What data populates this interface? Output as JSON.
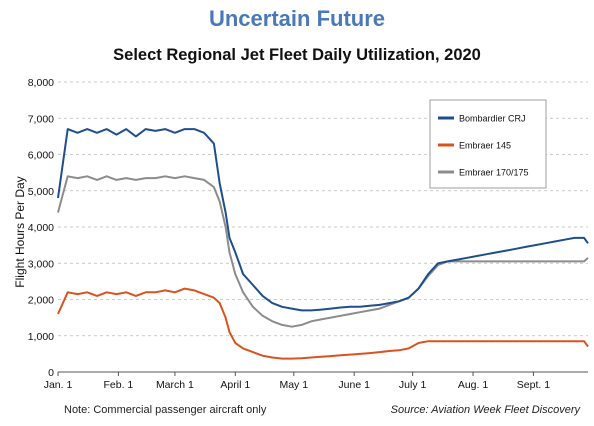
{
  "header": {
    "headline": "Uncertain Future",
    "subtitle": "Select Regional Jet Fleet Daily Utilization, 2020"
  },
  "footer": {
    "note": "Note: Commercial passenger aircraft only",
    "source": "Source: Aviation Week Fleet Discovery"
  },
  "chart_data": {
    "type": "line",
    "title": "Select Regional Jet Fleet Daily Utilization, 2020",
    "xlabel": "",
    "ylabel": "Flight Hours Per Day",
    "ylim": [
      0,
      8000
    ],
    "yticks": [
      "0",
      "1,000",
      "2,000",
      "3,000",
      "4,000",
      "5,000",
      "6,000",
      "7,000",
      "8,000"
    ],
    "xticks": [
      "Jan. 1",
      "Feb. 1",
      "March 1",
      "April 1",
      "May 1",
      "June 1",
      "July 1",
      "Aug. 1",
      "Sept. 1"
    ],
    "x_tick_days": [
      0,
      31,
      60,
      91,
      121,
      152,
      182,
      213,
      244
    ],
    "x_range_days": [
      0,
      272
    ],
    "grid": true,
    "legend_position": "top-right",
    "series": [
      {
        "name": "Bombardier CRJ",
        "color": "#1f4e8c",
        "x": [
          0,
          5,
          10,
          15,
          20,
          25,
          30,
          35,
          40,
          45,
          50,
          55,
          60,
          65,
          70,
          75,
          80,
          83,
          86,
          88,
          91,
          95,
          100,
          105,
          110,
          115,
          120,
          125,
          130,
          135,
          140,
          145,
          150,
          155,
          160,
          165,
          170,
          175,
          180,
          185,
          190,
          195,
          200,
          205,
          210,
          215,
          220,
          225,
          230,
          235,
          240,
          245,
          250,
          255,
          260,
          265,
          270,
          272
        ],
        "values": [
          4800,
          6700,
          6600,
          6700,
          6600,
          6700,
          6550,
          6700,
          6500,
          6700,
          6650,
          6700,
          6600,
          6700,
          6700,
          6600,
          6300,
          5200,
          4400,
          3700,
          3300,
          2700,
          2400,
          2100,
          1900,
          1800,
          1750,
          1700,
          1700,
          1720,
          1750,
          1780,
          1800,
          1800,
          1830,
          1850,
          1900,
          1950,
          2050,
          2300,
          2700,
          3000,
          3050,
          3100,
          3150,
          3200,
          3250,
          3300,
          3350,
          3400,
          3450,
          3500,
          3550,
          3600,
          3650,
          3700,
          3700,
          3550
        ]
      },
      {
        "name": "Embraer 145",
        "color": "#d9531e",
        "x": [
          0,
          5,
          10,
          15,
          20,
          25,
          30,
          35,
          40,
          45,
          50,
          55,
          60,
          65,
          70,
          75,
          80,
          83,
          86,
          88,
          91,
          95,
          100,
          105,
          110,
          115,
          120,
          125,
          130,
          135,
          140,
          145,
          150,
          155,
          160,
          165,
          170,
          175,
          180,
          185,
          190,
          195,
          200,
          205,
          210,
          215,
          220,
          225,
          230,
          235,
          240,
          245,
          250,
          255,
          260,
          265,
          270,
          272
        ],
        "values": [
          1600,
          2200,
          2150,
          2200,
          2100,
          2200,
          2150,
          2200,
          2100,
          2200,
          2200,
          2250,
          2200,
          2300,
          2250,
          2150,
          2050,
          1900,
          1500,
          1100,
          800,
          650,
          550,
          450,
          400,
          370,
          370,
          380,
          400,
          420,
          440,
          460,
          480,
          500,
          520,
          550,
          580,
          600,
          650,
          800,
          850,
          850,
          850,
          850,
          850,
          850,
          850,
          850,
          850,
          850,
          850,
          850,
          850,
          850,
          850,
          850,
          850,
          700
        ]
      },
      {
        "name": "Embraer 170/175",
        "color": "#8c8c8c",
        "x": [
          0,
          5,
          10,
          15,
          20,
          25,
          30,
          35,
          40,
          45,
          50,
          55,
          60,
          65,
          70,
          75,
          80,
          83,
          86,
          88,
          91,
          95,
          100,
          105,
          110,
          115,
          120,
          125,
          130,
          135,
          140,
          145,
          150,
          155,
          160,
          165,
          170,
          175,
          180,
          185,
          190,
          195,
          200,
          205,
          210,
          215,
          220,
          225,
          230,
          235,
          240,
          245,
          250,
          255,
          260,
          265,
          270,
          272
        ],
        "values": [
          4400,
          5400,
          5350,
          5400,
          5300,
          5400,
          5300,
          5350,
          5300,
          5350,
          5350,
          5400,
          5350,
          5400,
          5350,
          5300,
          5100,
          4700,
          4000,
          3300,
          2700,
          2200,
          1800,
          1550,
          1400,
          1300,
          1250,
          1300,
          1400,
          1450,
          1500,
          1550,
          1600,
          1650,
          1700,
          1750,
          1850,
          1950,
          2050,
          2300,
          2650,
          2950,
          3050,
          3050,
          3050,
          3050,
          3050,
          3050,
          3050,
          3050,
          3050,
          3050,
          3050,
          3050,
          3050,
          3050,
          3050,
          3150
        ]
      }
    ]
  }
}
